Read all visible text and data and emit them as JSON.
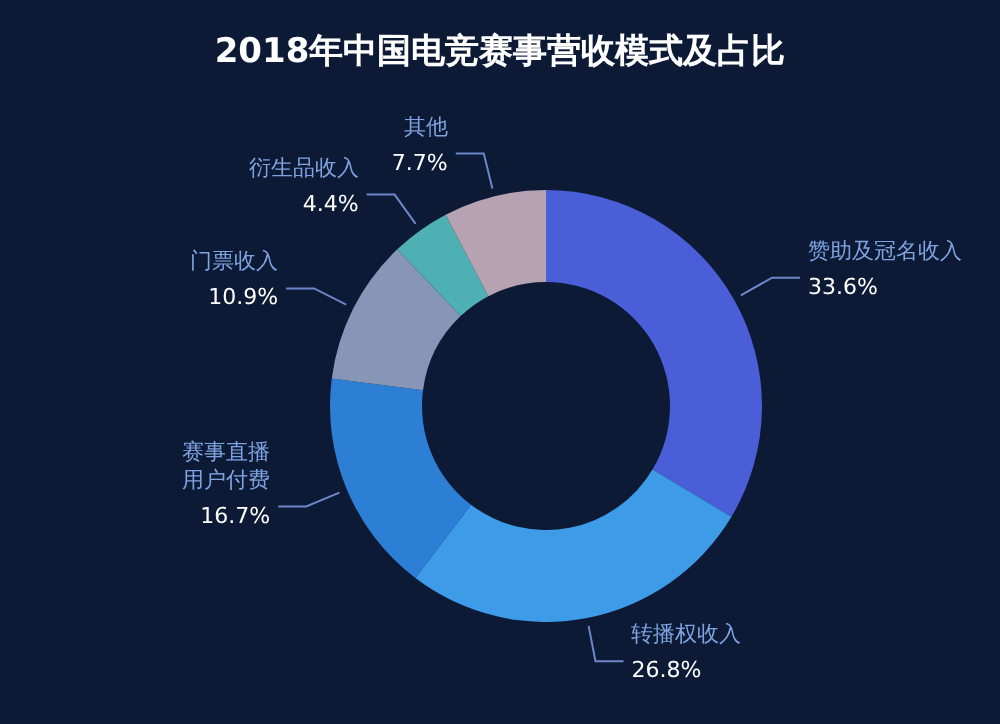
{
  "chart_data": {
    "type": "donut",
    "title": "2018年中国电竞赛事营收模式及占比",
    "categories": [
      "赞助及冠名收入",
      "转播权收入",
      "赛事直播用户付费",
      "门票收入",
      "衍生品收入",
      "其他"
    ],
    "values": [
      33.6,
      26.8,
      16.7,
      10.9,
      4.4,
      7.7
    ],
    "value_labels": [
      "33.6%",
      "26.8%",
      "16.7%",
      "10.9%",
      "4.4%",
      "7.7%"
    ],
    "colors": [
      "#4a5ed8",
      "#3d9be8",
      "#2d7fd6",
      "#8796b6",
      "#4fb0b3",
      "#b7a2b2"
    ]
  }
}
